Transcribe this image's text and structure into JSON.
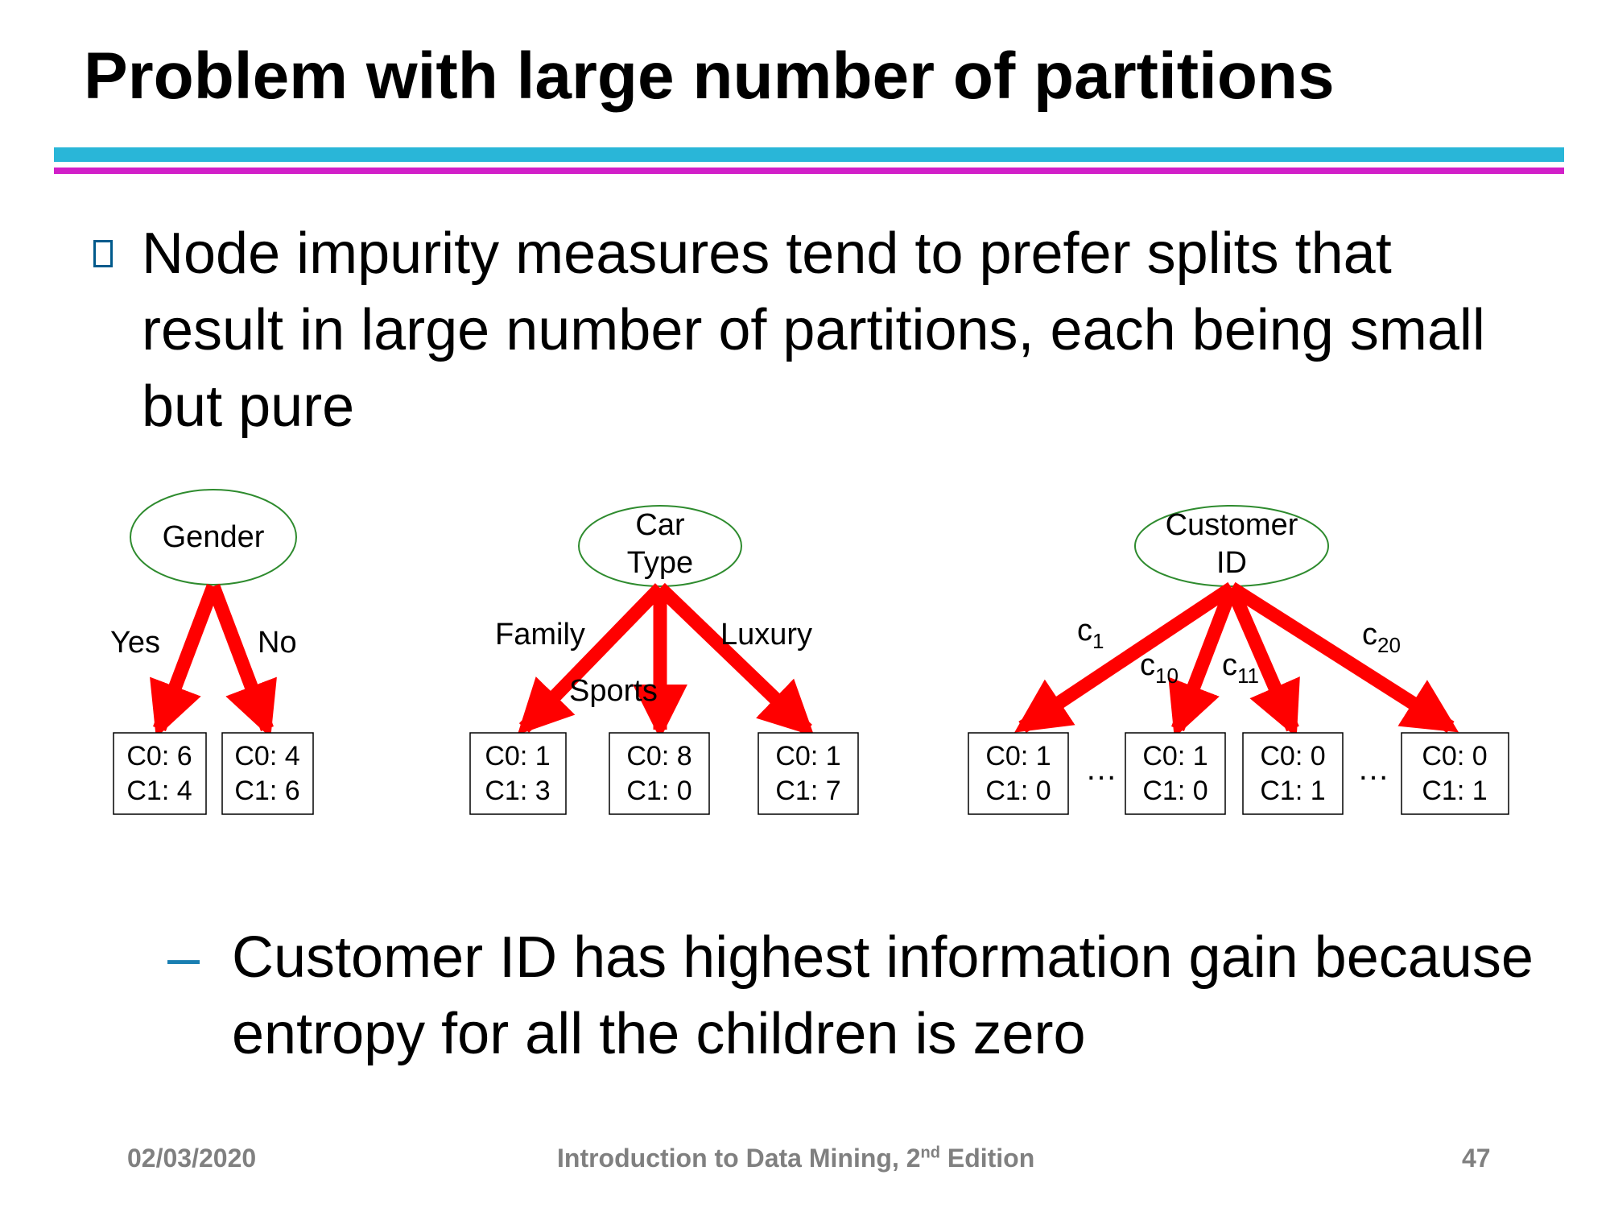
{
  "slide": {
    "title": "Problem with large number of partitions",
    "bullet": "Node impurity measures tend to prefer splits that result in large number of partitions, each being small but pure",
    "sub_bullet": "Customer ID has highest information gain because entropy for all the children is zero"
  },
  "trees": {
    "gender": {
      "root_label": "Gender",
      "edges": [
        "Yes",
        "No"
      ],
      "leaves": [
        {
          "c0": "C0: 6",
          "c1": "C1: 4"
        },
        {
          "c0": "C0: 4",
          "c1": "C1: 6"
        }
      ]
    },
    "car_type": {
      "root_label_line1": "Car",
      "root_label_line2": "Type",
      "edges": [
        "Family",
        "Sports",
        "Luxury"
      ],
      "leaves": [
        {
          "c0": "C0: 1",
          "c1": "C1: 3"
        },
        {
          "c0": "C0: 8",
          "c1": "C1: 0"
        },
        {
          "c0": "C0: 1",
          "c1": "C1: 7"
        }
      ]
    },
    "customer_id": {
      "root_label_line1": "Customer",
      "root_label_line2": "ID",
      "edges": [
        {
          "base": "c",
          "sub": "1"
        },
        {
          "base": "c",
          "sub": "10"
        },
        {
          "base": "c",
          "sub": "11"
        },
        {
          "base": "c",
          "sub": "20"
        }
      ],
      "leaves": [
        {
          "c0": "C0: 1",
          "c1": "C1: 0"
        },
        {
          "c0": "C0: 1",
          "c1": "C1: 0"
        },
        {
          "c0": "C0: 0",
          "c1": "C1: 1"
        },
        {
          "c0": "C0: 0",
          "c1": "C1: 1"
        }
      ],
      "ellipsis": "…"
    }
  },
  "colors": {
    "arrow": "#ff0000",
    "node_outline": "#2e8b2e",
    "rule_top": "#29b6d8",
    "rule_bottom": "#d11fc8",
    "footer_text": "#808080"
  },
  "footer": {
    "date": "02/03/2020",
    "book_prefix": "Introduction to Data Mining, 2",
    "book_sup": "nd",
    "book_suffix": " Edition",
    "page": "47"
  }
}
